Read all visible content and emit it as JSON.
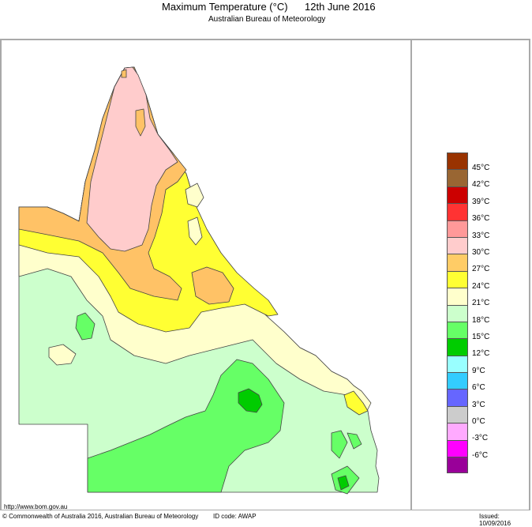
{
  "header": {
    "title": "Maximum Temperature (°C)",
    "date": "12th June 2016",
    "subtitle": "Australian Bureau of Meteorology"
  },
  "map": {
    "region": "Queensland",
    "palette": {
      "land_30_33": "#ffcccc",
      "land_27_30": "#ffc266",
      "land_24_27": "#ffff33",
      "land_21_24": "#ffffcc",
      "land_18_21": "#ccffcc",
      "land_15_18": "#66ff66",
      "land_12_15": "#00cc00",
      "outline": "#333333"
    }
  },
  "legend": {
    "swatches": [
      {
        "color": "#993300"
      },
      {
        "color": "#996633"
      },
      {
        "color": "#cc0000"
      },
      {
        "color": "#ff3333"
      },
      {
        "color": "#ff9999"
      },
      {
        "color": "#ffcccc"
      },
      {
        "color": "#ffcc66"
      },
      {
        "color": "#ffff33"
      },
      {
        "color": "#ffffcc"
      },
      {
        "color": "#ccffcc"
      },
      {
        "color": "#66ff66"
      },
      {
        "color": "#00cc00"
      },
      {
        "color": "#99ffff"
      },
      {
        "color": "#33ccff"
      },
      {
        "color": "#6666ff"
      },
      {
        "color": "#cccccc"
      },
      {
        "color": "#ffaaff"
      },
      {
        "color": "#ff00ff"
      },
      {
        "color": "#990099"
      }
    ],
    "labels": [
      "45°C",
      "42°C",
      "39°C",
      "36°C",
      "33°C",
      "30°C",
      "27°C",
      "24°C",
      "21°C",
      "18°C",
      "15°C",
      "12°C",
      "9°C",
      "6°C",
      "3°C",
      "0°C",
      "-3°C",
      "-6°C"
    ]
  },
  "footer": {
    "url": "http://www.bom.gov.au",
    "copyright": "© Commonwealth of Australia 2016, Australian Bureau of Meteorology",
    "id_code": "ID code: AWAP",
    "issued": "Issued: 10/09/2016"
  }
}
